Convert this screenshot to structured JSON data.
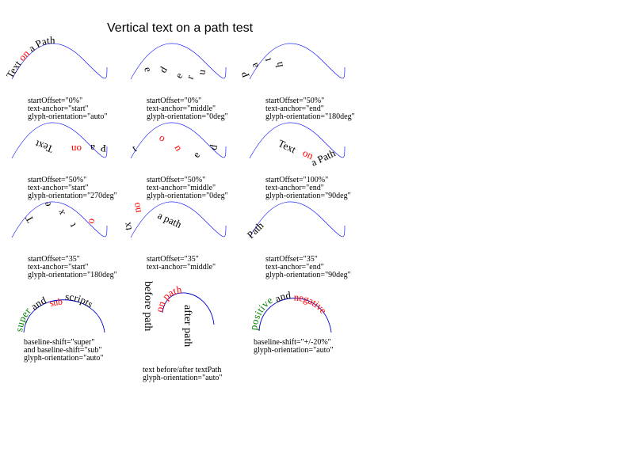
{
  "title": "Vertical text on a path test",
  "colors": {
    "guide": "#0000ff",
    "highlight": "#ff0000",
    "green": "#008000",
    "text": "#000000"
  },
  "tests": [
    {
      "line1": "startOffset=\"0%\"",
      "line2": "text-anchor=\"start\"",
      "line3": "glyph-orientation=\"auto\""
    },
    {
      "line1": "startOffset=\"0%\"",
      "line2": "text-anchor=\"middle\"",
      "line3": "glyph-orientation=\"0deg\""
    },
    {
      "line1": "startOffset=\"50%\"",
      "line2": "text-anchor=\"end\"",
      "line3": "glyph-orientation=\"180deg\""
    },
    {
      "line1": "startOffset=\"50%\"",
      "line2": "text-anchor=\"start\"",
      "line3": "glyph-orientation=\"270deg\""
    },
    {
      "line1": "startOffset=\"50%\"",
      "line2": "text-anchor=\"middle\"",
      "line3": "glyph-orientation=\"0deg\""
    },
    {
      "line1": "startOffset=\"100%\"",
      "line2": "text-anchor=\"end\"",
      "line3": "glyph-orientation=\"90deg\""
    },
    {
      "line1": "startOffset=\"35\"",
      "line2": "text-anchor=\"start\"",
      "line3": "glyph-orientation=\"180deg\""
    },
    {
      "line1": "startOffset=\"35\"",
      "line2": "text-anchor=\"middle\"",
      "line3": ""
    },
    {
      "line1": "startOffset=\"35\"",
      "line2": "text-anchor=\"end\"",
      "line3": "glyph-orientation=\"90deg\""
    }
  ],
  "path_text": {
    "text": "Text",
    "on": "on",
    "a_path": "a Path",
    "path": "Path"
  },
  "baseline_demo": {
    "super": "super",
    "and": "and",
    "sub": "sub",
    "scripts": "scripts",
    "caption1": "baseline-shift=\"super\"",
    "caption2": "and baseline-shift=\"sub\"",
    "caption3": "glyph-orientation=\"auto\""
  },
  "before_after_demo": {
    "before": "before path",
    "on_path": "on path",
    "after": "after path",
    "caption1": "text before/after textPath",
    "caption2": "glyph-orientation=\"auto\""
  },
  "shift_demo": {
    "positive": "positive",
    "and": "and",
    "negative": "negative",
    "caption1": "baseline-shift=\"+/-20%\"",
    "caption2": "glyph-orientation=\"auto\""
  }
}
